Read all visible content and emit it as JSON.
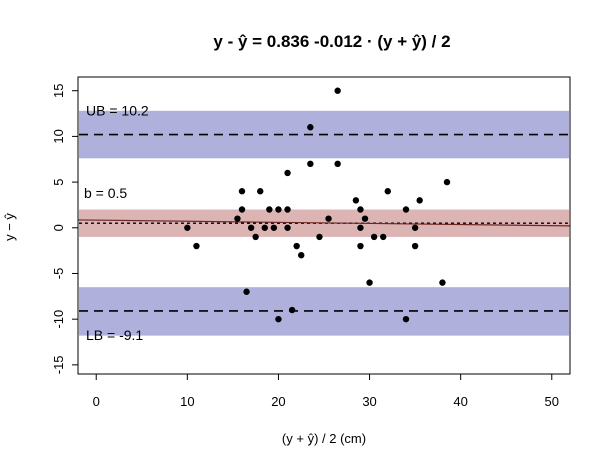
{
  "chart_data": {
    "type": "scatter",
    "title": "y - ŷ = 0.836 -0.012 · (y + ŷ) / 2",
    "xlabel": "(y + ŷ) / 2 (cm)",
    "ylabel": "y − ŷ",
    "xlim": [
      -2,
      52
    ],
    "ylim": [
      -16,
      16.5
    ],
    "x_ticks": [
      0,
      10,
      20,
      30,
      40,
      50
    ],
    "y_ticks": [
      -15,
      -10,
      -5,
      0,
      5,
      10,
      15
    ],
    "grid": false,
    "bands": [
      {
        "name": "upper",
        "from": 7.6,
        "to": 12.8,
        "color": "#b0b0dc"
      },
      {
        "name": "bias",
        "from": -1.0,
        "to": 2.0,
        "color": "#dcb4b4"
      },
      {
        "name": "lower",
        "from": -11.8,
        "to": -6.5,
        "color": "#b0b0dc"
      }
    ],
    "reference_lines": [
      {
        "name": "UB",
        "y": 10.2,
        "style": "dashed",
        "label": "UB = 10.2"
      },
      {
        "name": "b",
        "y": 0.5,
        "style": "dotted",
        "label": "b = 0.5"
      },
      {
        "name": "LB",
        "y": -9.1,
        "style": "dashed",
        "label": "LB = -9.1"
      }
    ],
    "regression_line": {
      "intercept": 0.836,
      "slope": -0.012,
      "color": "#6a2a2a"
    },
    "points": [
      {
        "x": 10,
        "y": 0
      },
      {
        "x": 11,
        "y": -2
      },
      {
        "x": 15.5,
        "y": 1
      },
      {
        "x": 16,
        "y": 4
      },
      {
        "x": 16,
        "y": 2
      },
      {
        "x": 16.5,
        "y": -7
      },
      {
        "x": 17,
        "y": 0
      },
      {
        "x": 17.5,
        "y": -1
      },
      {
        "x": 18,
        "y": 4
      },
      {
        "x": 18.5,
        "y": 0
      },
      {
        "x": 19,
        "y": 2
      },
      {
        "x": 19.5,
        "y": 0
      },
      {
        "x": 20,
        "y": 2
      },
      {
        "x": 20,
        "y": -10
      },
      {
        "x": 21,
        "y": 2
      },
      {
        "x": 21,
        "y": 6
      },
      {
        "x": 21,
        "y": 0
      },
      {
        "x": 21.5,
        "y": -9
      },
      {
        "x": 22,
        "y": -2
      },
      {
        "x": 22.5,
        "y": -3
      },
      {
        "x": 23.5,
        "y": 11
      },
      {
        "x": 23.5,
        "y": 7
      },
      {
        "x": 24.5,
        "y": -1
      },
      {
        "x": 25.5,
        "y": 1
      },
      {
        "x": 26.5,
        "y": 15
      },
      {
        "x": 26.5,
        "y": 7
      },
      {
        "x": 28.5,
        "y": 3
      },
      {
        "x": 29,
        "y": 2
      },
      {
        "x": 29,
        "y": 0
      },
      {
        "x": 29,
        "y": -2
      },
      {
        "x": 29.5,
        "y": 1
      },
      {
        "x": 30,
        "y": -6
      },
      {
        "x": 30.5,
        "y": -1
      },
      {
        "x": 31.5,
        "y": -1
      },
      {
        "x": 32,
        "y": 4
      },
      {
        "x": 34,
        "y": 2
      },
      {
        "x": 34,
        "y": -10
      },
      {
        "x": 35,
        "y": 0
      },
      {
        "x": 35,
        "y": -2
      },
      {
        "x": 35.5,
        "y": 3
      },
      {
        "x": 38,
        "y": -6
      },
      {
        "x": 38.5,
        "y": 5
      }
    ]
  }
}
